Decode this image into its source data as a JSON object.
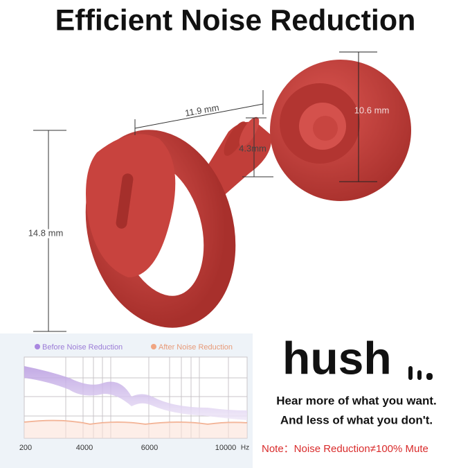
{
  "title": "Efficient Noise Reduction",
  "dimensions": {
    "length": "11.9 mm",
    "stem": "4.3mm",
    "tip": "10.6 mm",
    "height": "14.8 mm"
  },
  "graph": {
    "legend": [
      "Before Noise Reduction",
      "After Noise Reduction"
    ],
    "x_labels": [
      "200",
      "4000",
      "6000",
      "10000"
    ],
    "unit": "Hz"
  },
  "brand": {
    "logo": "hush",
    "tagline": [
      "Hear more of what you want.",
      "And less of what you don't."
    ],
    "note": "Note：Noise Reduction≠100% Mute"
  }
}
